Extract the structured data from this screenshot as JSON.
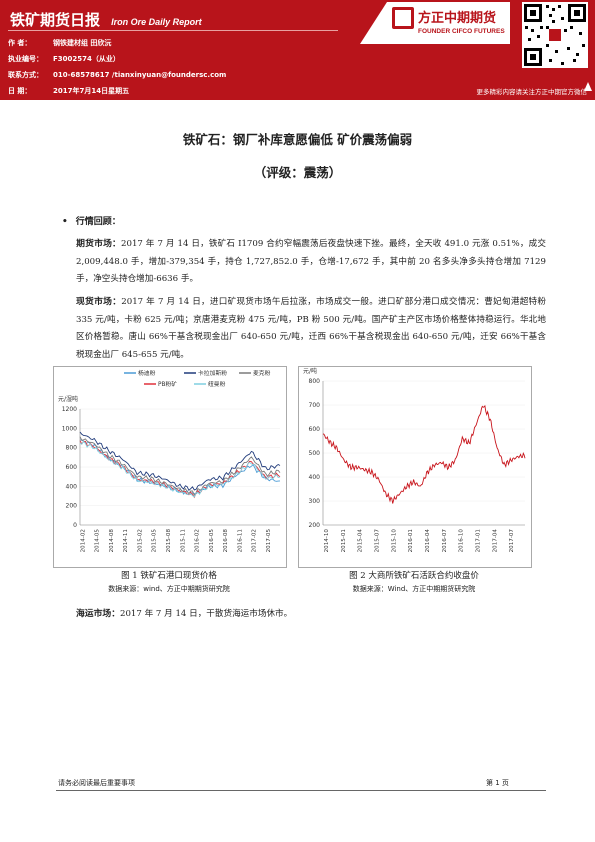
{
  "header": {
    "title": "铁矿期货日报",
    "title_en": "Iron Ore Daily Report",
    "info": [
      {
        "label": "作    者：",
        "value": "钢铁建材组 田欣沅"
      },
      {
        "label": "执业编号：",
        "value": "F3002574（从业）"
      },
      {
        "label": "联系方式：",
        "value": "010-68578617 /tianxinyuan@foundersc.com"
      },
      {
        "label": "日    期：",
        "value": "2017年7月14日星期五"
      }
    ],
    "logo_cn": "方正中期期货",
    "logo_en": "FOUNDER CIFCO FUTURES",
    "subscribe": "更多精彩内容请关注方正中期官方微信",
    "brand_color": "#b8141b"
  },
  "title": "铁矿石：钢厂补库意愿偏低 矿价震荡偏弱",
  "rating": "（评级：震荡）",
  "section_title": "行情回顾：",
  "paragraphs": {
    "futures_label": "期货市场：",
    "futures_text": "2017 年 7 月 14 日，铁矿石 I1709 合约窄幅震荡后夜盘快速下挫。最终，全天收 491.0 元涨 0.51%，成交 2,009,448.0 手，增加-379,354 手，持仓 1,727,852.0 手，仓增-17,672 手，其中前 20 名多头净多头持仓增加 7129 手，净空头持仓增加-6636 手。",
    "spot_label": "现货市场：",
    "spot_text": "2017 年 7 月 14 日，进口矿现货市场午后拉涨，市场成交一般。进口矿部分港口成交情况：曹妃甸港超特粉 335 元/吨，卡粉 625 元/吨；京唐港麦克粉 475 元/吨，PB 粉 500 元/吨。国产矿主产区市场价格整体持稳运行。华北地区价格暂稳。唐山 66%干基含税现金出厂 640-650 元/吨，迁西 66%干基含税现金出 640-650 元/吨，迁安 66%干基含税现金出厂 645-655 元/吨。",
    "shipping_label": "海运市场：",
    "shipping_text": "2017 年 7 月 14 日，干散货海运市场休市。"
  },
  "figures": [
    {
      "caption": "图 1 铁矿石港口现货价格",
      "source": "数据来源：wind、方正中期期货研究院"
    },
    {
      "caption": "图 2 大商所铁矿石活跃合约收盘价",
      "source": "数据来源：Wind、方正中期期货研究院"
    }
  ],
  "footer": {
    "note": "请务必阅读最后重要事项",
    "page": "第 1 页"
  },
  "chart_data": [
    {
      "type": "line",
      "ylabel": "元/湿吨",
      "ylim": [
        0,
        1200
      ],
      "yticks": [
        0,
        200,
        400,
        600,
        800,
        1000,
        1200
      ],
      "x_labels": [
        "2014-02",
        "2014-05",
        "2014-08",
        "2014-11",
        "2015-02",
        "2015-05",
        "2015-08",
        "2015-11",
        "2016-02",
        "2016-05",
        "2016-08",
        "2016-11",
        "2017-02",
        "2017-05"
      ],
      "legend": "top",
      "series": [
        {
          "name": "杨迪粉",
          "color": "#4a9bd6",
          "values": [
            880,
            820,
            690,
            600,
            470,
            440,
            400,
            350,
            320,
            400,
            410,
            520,
            620,
            480,
            450
          ]
        },
        {
          "name": "卡拉加斯粉",
          "color": "#1f3a7a",
          "values": [
            950,
            880,
            770,
            680,
            540,
            520,
            470,
            400,
            370,
            470,
            490,
            620,
            760,
            580,
            620
          ]
        },
        {
          "name": "麦克粉",
          "color": "#7a7a7a",
          "values": [
            900,
            840,
            720,
            630,
            500,
            480,
            430,
            370,
            330,
            430,
            450,
            570,
            700,
            520,
            560
          ]
        },
        {
          "name": "PB粉矿",
          "color": "#e0303a",
          "values": [
            870,
            810,
            690,
            600,
            470,
            450,
            410,
            350,
            310,
            410,
            430,
            540,
            660,
            490,
            520
          ]
        },
        {
          "name": "纽曼粉",
          "color": "#7fcfe0",
          "values": [
            860,
            800,
            680,
            590,
            460,
            440,
            400,
            340,
            305,
            400,
            420,
            530,
            650,
            480,
            510
          ]
        }
      ]
    },
    {
      "type": "line",
      "ylabel": "元/吨",
      "ylim": [
        200,
        800
      ],
      "yticks": [
        200,
        300,
        400,
        500,
        600,
        700,
        800
      ],
      "x_labels": [
        "2014-10",
        "2015-01",
        "2015-04",
        "2015-07",
        "2015-10",
        "2016-01",
        "2016-04",
        "2016-07",
        "2016-10",
        "2017-01",
        "2017-04",
        "2017-07"
      ],
      "series": [
        {
          "name": "",
          "color": "#c8141b",
          "values": [
            580,
            545,
            520,
            470,
            440,
            440,
            430,
            420,
            390,
            330,
            300,
            330,
            360,
            380,
            360,
            420,
            450,
            460,
            440,
            470,
            560,
            540,
            620,
            700,
            640,
            520,
            450,
            470,
            485,
            490
          ]
        }
      ]
    }
  ]
}
